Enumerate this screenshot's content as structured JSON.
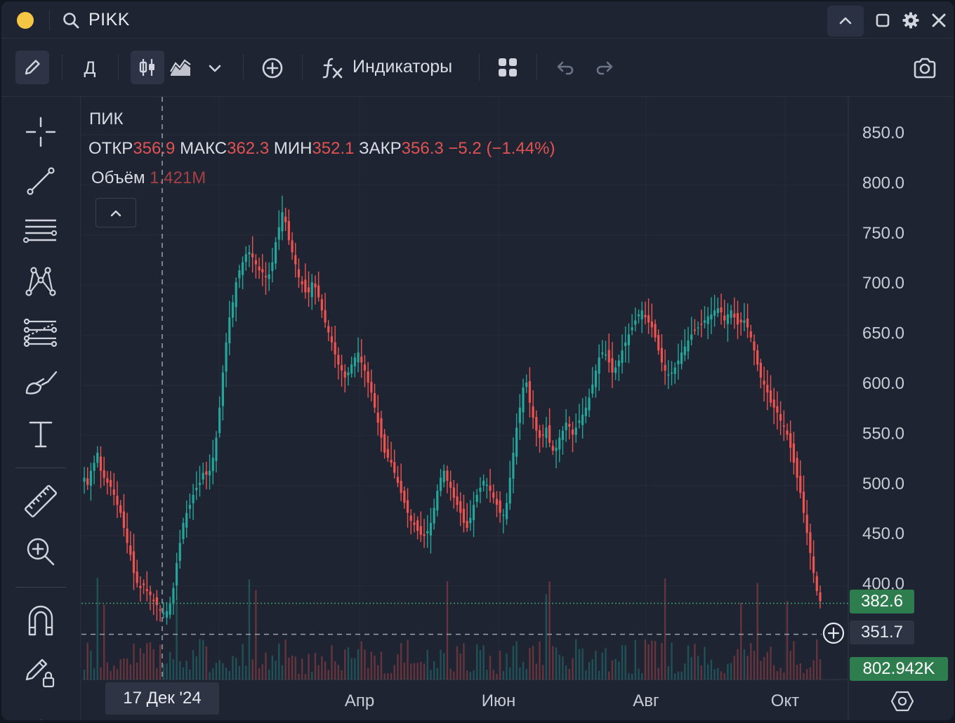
{
  "header": {
    "symbol": "PIKK"
  },
  "toolbar": {
    "interval": "Д",
    "indicators_label": "Индикаторы",
    "icons": [
      "pencil-icon",
      "candles-icon",
      "area-chart-icon",
      "chevron-down-icon",
      "add-circle-icon",
      "function-icon",
      "layout-grid-icon",
      "undo-icon",
      "redo-icon",
      "camera-icon"
    ]
  },
  "legend": {
    "name": "ПИК",
    "open_label": "ОТКР",
    "open": "356.9",
    "high_label": "МАКС",
    "high": "362.3",
    "low_label": "МИН",
    "low": "352.1",
    "close_label": "ЗАКР",
    "close": "356.3",
    "change": "−5.2 (−1.44%)",
    "volume_label": "Объём",
    "volume": "1.421M"
  },
  "price_tags": {
    "last": "382.6",
    "crosshair": "351.7",
    "volume": "802.942K"
  },
  "crosshair_date": "17 Дек '24",
  "colors": {
    "up": "#26a69a",
    "down": "#ef5350",
    "background": "#1e2432",
    "accent_tag": "#2e7d4f"
  },
  "chart_data": {
    "type": "candlestick",
    "y_ticks": [
      "850.0",
      "800.0",
      "750.0",
      "700.0",
      "650.0",
      "600.0",
      "550.0",
      "500.0",
      "450.0",
      "400.0"
    ],
    "ylim": [
      360,
      870
    ],
    "x_ticks": [
      "Апр",
      "Июн",
      "Авг",
      "Окт"
    ],
    "last_price": 382.6,
    "crosshair_price": 351.7,
    "close_series": [
      505,
      498,
      512,
      520,
      530,
      512,
      505,
      500,
      496,
      488,
      478,
      470,
      455,
      440,
      428,
      410,
      400,
      395,
      398,
      392,
      388,
      382,
      378,
      373,
      370,
      372,
      380,
      395,
      420,
      440,
      460,
      470,
      478,
      488,
      495,
      500,
      510,
      508,
      512,
      525,
      545,
      575,
      610,
      640,
      665,
      680,
      700,
      712,
      720,
      728,
      730,
      725,
      718,
      712,
      710,
      705,
      708,
      720,
      740,
      755,
      770,
      760,
      742,
      730,
      718,
      705,
      698,
      690,
      690,
      700,
      695,
      685,
      672,
      660,
      650,
      640,
      628,
      618,
      612,
      605,
      610,
      618,
      625,
      630,
      620,
      612,
      600,
      590,
      575,
      560,
      545,
      530,
      525,
      520,
      510,
      500,
      490,
      480,
      470,
      462,
      458,
      452,
      448,
      447,
      452,
      460,
      475,
      492,
      505,
      512,
      502,
      495,
      485,
      478,
      470,
      460,
      455,
      465,
      478,
      488,
      495,
      502,
      498,
      492,
      485,
      478,
      470,
      468,
      480,
      505,
      530,
      555,
      575,
      595,
      600,
      580,
      565,
      552,
      545,
      548,
      555,
      540,
      532,
      535,
      545,
      552,
      560,
      556,
      548,
      555,
      562,
      568,
      575,
      585,
      598,
      612,
      625,
      630,
      628,
      620,
      610,
      615,
      622,
      632,
      640,
      648,
      655,
      662,
      668,
      672,
      665,
      660,
      655,
      645,
      632,
      620,
      612,
      608,
      610,
      615,
      622,
      630,
      636,
      642,
      648,
      652,
      655,
      658,
      662,
      666,
      668,
      672,
      674,
      670,
      662,
      668,
      672,
      665,
      658,
      660,
      662,
      655,
      645,
      632,
      618,
      605,
      598,
      590,
      580,
      575,
      570,
      562,
      556,
      548,
      535,
      520,
      505,
      490,
      470,
      450,
      430,
      410,
      392,
      382
    ]
  },
  "sidebar_tools": [
    "crosshair-icon",
    "trend-line-icon",
    "horizontal-lines-icon",
    "pattern-icon",
    "fib-icon",
    "brush-icon",
    "text-icon",
    "ruler-icon",
    "zoom-in-icon",
    "magnet-icon",
    "lock-drawings-icon"
  ]
}
